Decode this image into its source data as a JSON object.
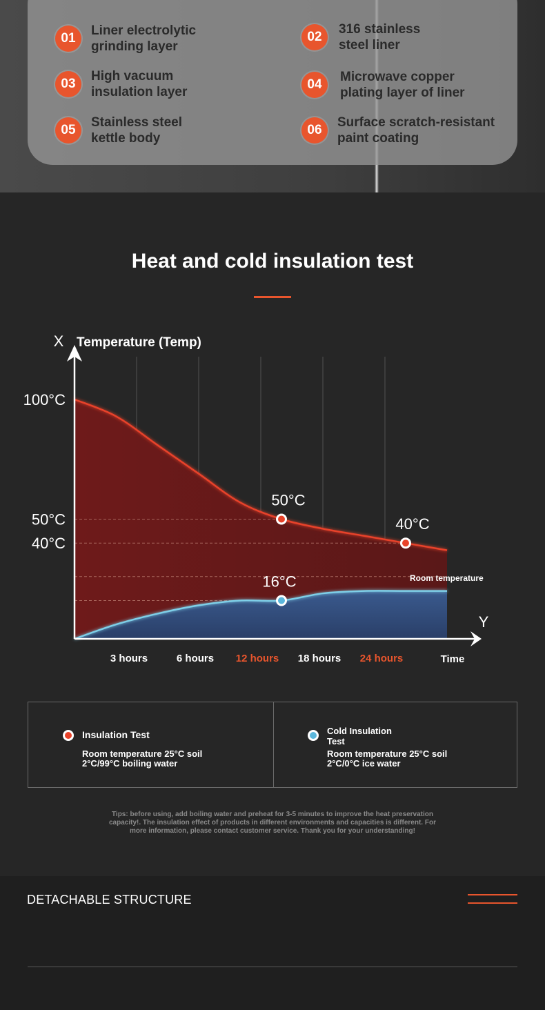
{
  "layers": [
    {
      "num": "01",
      "line1": "Liner electrolytic",
      "line2": "grinding layer"
    },
    {
      "num": "02",
      "line1": "316 stainless",
      "line2": "steel liner"
    },
    {
      "num": "03",
      "line1": "High vacuum",
      "line2": "insulation layer"
    },
    {
      "num": "04",
      "line1": "Microwave copper",
      "line2": "plating layer of liner"
    },
    {
      "num": "05",
      "line1": "Stainless steel",
      "line2": "kettle body"
    },
    {
      "num": "06",
      "line1": "Surface scratch-resistant",
      "line2": "paint coating"
    }
  ],
  "heading": "Heat and cold insulation test",
  "colors": {
    "accent": "#e8552d",
    "hot_line": "#e8432a",
    "hot_fill": "#6e1a1a",
    "cold_line": "#7ecfe8",
    "cold_fill": "#2d4673",
    "background": "#262626"
  },
  "chart_data": {
    "type": "area",
    "x_axis_letter": "X",
    "y_axis_letter": "Y",
    "ylabel": "Temperature (Temp)",
    "xlabel": "Time",
    "x_ticks": [
      "3 hours",
      "6 hours",
      "12 hours",
      "18 hours",
      "24 hours"
    ],
    "highlighted_ticks": [
      "12 hours",
      "24 hours"
    ],
    "y_ticks": [
      "100°C",
      "50°C",
      "40°C"
    ],
    "room_temperature_label": "Room temperature",
    "series": [
      {
        "name": "Insulation Test",
        "color": "#e8432a",
        "points": [
          [
            0,
            100
          ],
          [
            1,
            93
          ],
          [
            2,
            81
          ],
          [
            3,
            69
          ],
          [
            4,
            57
          ],
          [
            5,
            50
          ],
          [
            6,
            46
          ],
          [
            7,
            43
          ],
          [
            8,
            40
          ],
          [
            9,
            37
          ]
        ],
        "annotations": [
          {
            "x": 5,
            "y": 50,
            "label": "50°C"
          },
          {
            "x": 8,
            "y": 40,
            "label": "40°C"
          }
        ]
      },
      {
        "name": "Cold Insulation Test",
        "color": "#7ecfe8",
        "points": [
          [
            0,
            0
          ],
          [
            1,
            6
          ],
          [
            2,
            10.5
          ],
          [
            3,
            14
          ],
          [
            4,
            16
          ],
          [
            5,
            16
          ],
          [
            6,
            19
          ],
          [
            7,
            20
          ],
          [
            8,
            20
          ],
          [
            9,
            20
          ]
        ],
        "annotations": [
          {
            "x": 5,
            "y": 16,
            "label": "16°C"
          }
        ]
      }
    ],
    "reference_lines": [
      50,
      40,
      26,
      16
    ],
    "ylim": [
      0,
      100
    ],
    "grid": true
  },
  "legend": {
    "hot": {
      "title": "Insulation Test",
      "desc1": "Room temperature 25°C soil",
      "desc2": "2°C/99°C boiling water"
    },
    "cold": {
      "title1": "Cold Insulation",
      "title2": "Test",
      "desc1": "Room temperature 25°C soil",
      "desc2": "2°C/0°C ice water"
    }
  },
  "tips": {
    "line1": "Tips: before using, add boiling water and preheat for 3-5 minutes to improve the heat preservation",
    "line2": "capacity!. The insulation effect of products in different environments and capacities is different. For",
    "line3": "more information, please contact customer service. Thank you for your understanding!"
  },
  "detach_title": "DETACHABLE STRUCTURE"
}
